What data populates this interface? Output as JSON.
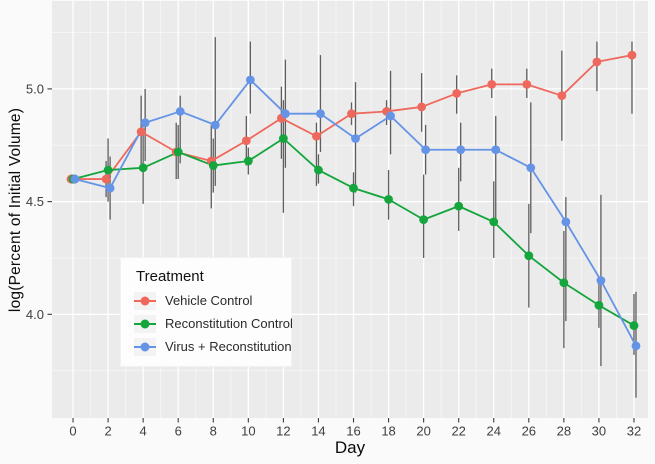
{
  "figure": {
    "outer_background": "#fafafa",
    "panel_background": "#ebebeb",
    "major_grid_color": "#ffffff",
    "minor_grid_color": "rgba(255,255,255,0.55)",
    "errorbar_color": "#4f4f4f",
    "tick_text_color": "#3f3f3f"
  },
  "chart_data": {
    "type": "line",
    "title": "",
    "xlabel": "Day",
    "ylabel": "log(Percent of Initial Volume)",
    "legend": {
      "title": "Treatment",
      "position": "inside-left-bottom"
    },
    "grid": true,
    "x": [
      0,
      2,
      4,
      6,
      8,
      10,
      12,
      14,
      16,
      18,
      20,
      22,
      24,
      26,
      28,
      30,
      32
    ],
    "x_ticks": [
      0,
      2,
      4,
      6,
      8,
      10,
      12,
      14,
      16,
      18,
      20,
      22,
      24,
      26,
      28,
      30,
      32
    ],
    "x_tick_labels": [
      "0",
      "2",
      "4",
      "6",
      "8",
      "10",
      "12",
      "14",
      "16",
      "18",
      "20",
      "22",
      "24",
      "26",
      "28",
      "30",
      "32"
    ],
    "y_ticks": [
      4.0,
      4.5,
      5.0
    ],
    "y_tick_labels": [
      "4.0",
      "4.5",
      "5.0"
    ],
    "y_minor_ticks": [
      3.75,
      4.25,
      4.75,
      5.25
    ],
    "xlim": [
      -1.2,
      32.8
    ],
    "ylim": [
      3.54,
      5.39
    ],
    "series": [
      {
        "name": "Vehicle Control",
        "color": "#ef685d",
        "values": [
          4.6,
          4.6,
          4.81,
          4.72,
          4.68,
          4.77,
          4.87,
          4.79,
          4.89,
          4.9,
          4.92,
          4.98,
          5.02,
          5.02,
          4.97,
          5.12,
          5.15
        ],
        "err_lo": [
          4.58,
          4.52,
          4.65,
          4.6,
          4.47,
          4.66,
          4.69,
          4.57,
          4.84,
          4.84,
          4.81,
          4.89,
          4.96,
          4.96,
          4.77,
          4.99,
          4.89
        ],
        "err_hi": [
          4.62,
          4.68,
          4.97,
          4.85,
          4.84,
          4.88,
          5.01,
          4.85,
          4.94,
          4.95,
          5.07,
          5.06,
          5.09,
          5.09,
          5.17,
          5.21,
          5.21
        ]
      },
      {
        "name": "Reconstitution Control",
        "color": "#14a53c",
        "values": [
          4.6,
          4.64,
          4.65,
          4.72,
          4.66,
          4.68,
          4.78,
          4.64,
          4.56,
          4.51,
          4.42,
          4.48,
          4.41,
          4.26,
          4.14,
          4.04,
          3.95
        ],
        "err_lo": [
          4.58,
          4.5,
          4.49,
          4.6,
          4.54,
          4.62,
          4.45,
          4.58,
          4.48,
          4.42,
          4.25,
          4.37,
          4.25,
          4.03,
          3.85,
          3.94,
          3.82
        ],
        "err_hi": [
          4.62,
          4.78,
          4.8,
          4.84,
          4.78,
          4.74,
          4.95,
          4.71,
          4.63,
          4.64,
          4.62,
          4.65,
          4.59,
          4.49,
          4.37,
          4.14,
          4.09
        ]
      },
      {
        "name": "Virus + Reconstitution",
        "color": "#6594e6",
        "values": [
          4.6,
          4.56,
          4.85,
          4.9,
          4.84,
          5.04,
          4.89,
          4.89,
          4.78,
          4.88,
          4.73,
          4.73,
          4.73,
          4.65,
          4.41,
          4.15,
          3.86
        ],
        "err_lo": [
          4.58,
          4.42,
          4.68,
          4.67,
          4.57,
          4.89,
          4.65,
          4.72,
          4.54,
          4.71,
          4.62,
          4.59,
          4.4,
          4.36,
          3.97,
          3.77,
          3.63
        ],
        "err_hi": [
          4.62,
          4.7,
          5.0,
          4.97,
          5.23,
          5.21,
          5.13,
          5.15,
          5.03,
          5.08,
          4.84,
          4.85,
          4.88,
          4.94,
          4.52,
          4.53,
          4.1
        ]
      }
    ]
  }
}
